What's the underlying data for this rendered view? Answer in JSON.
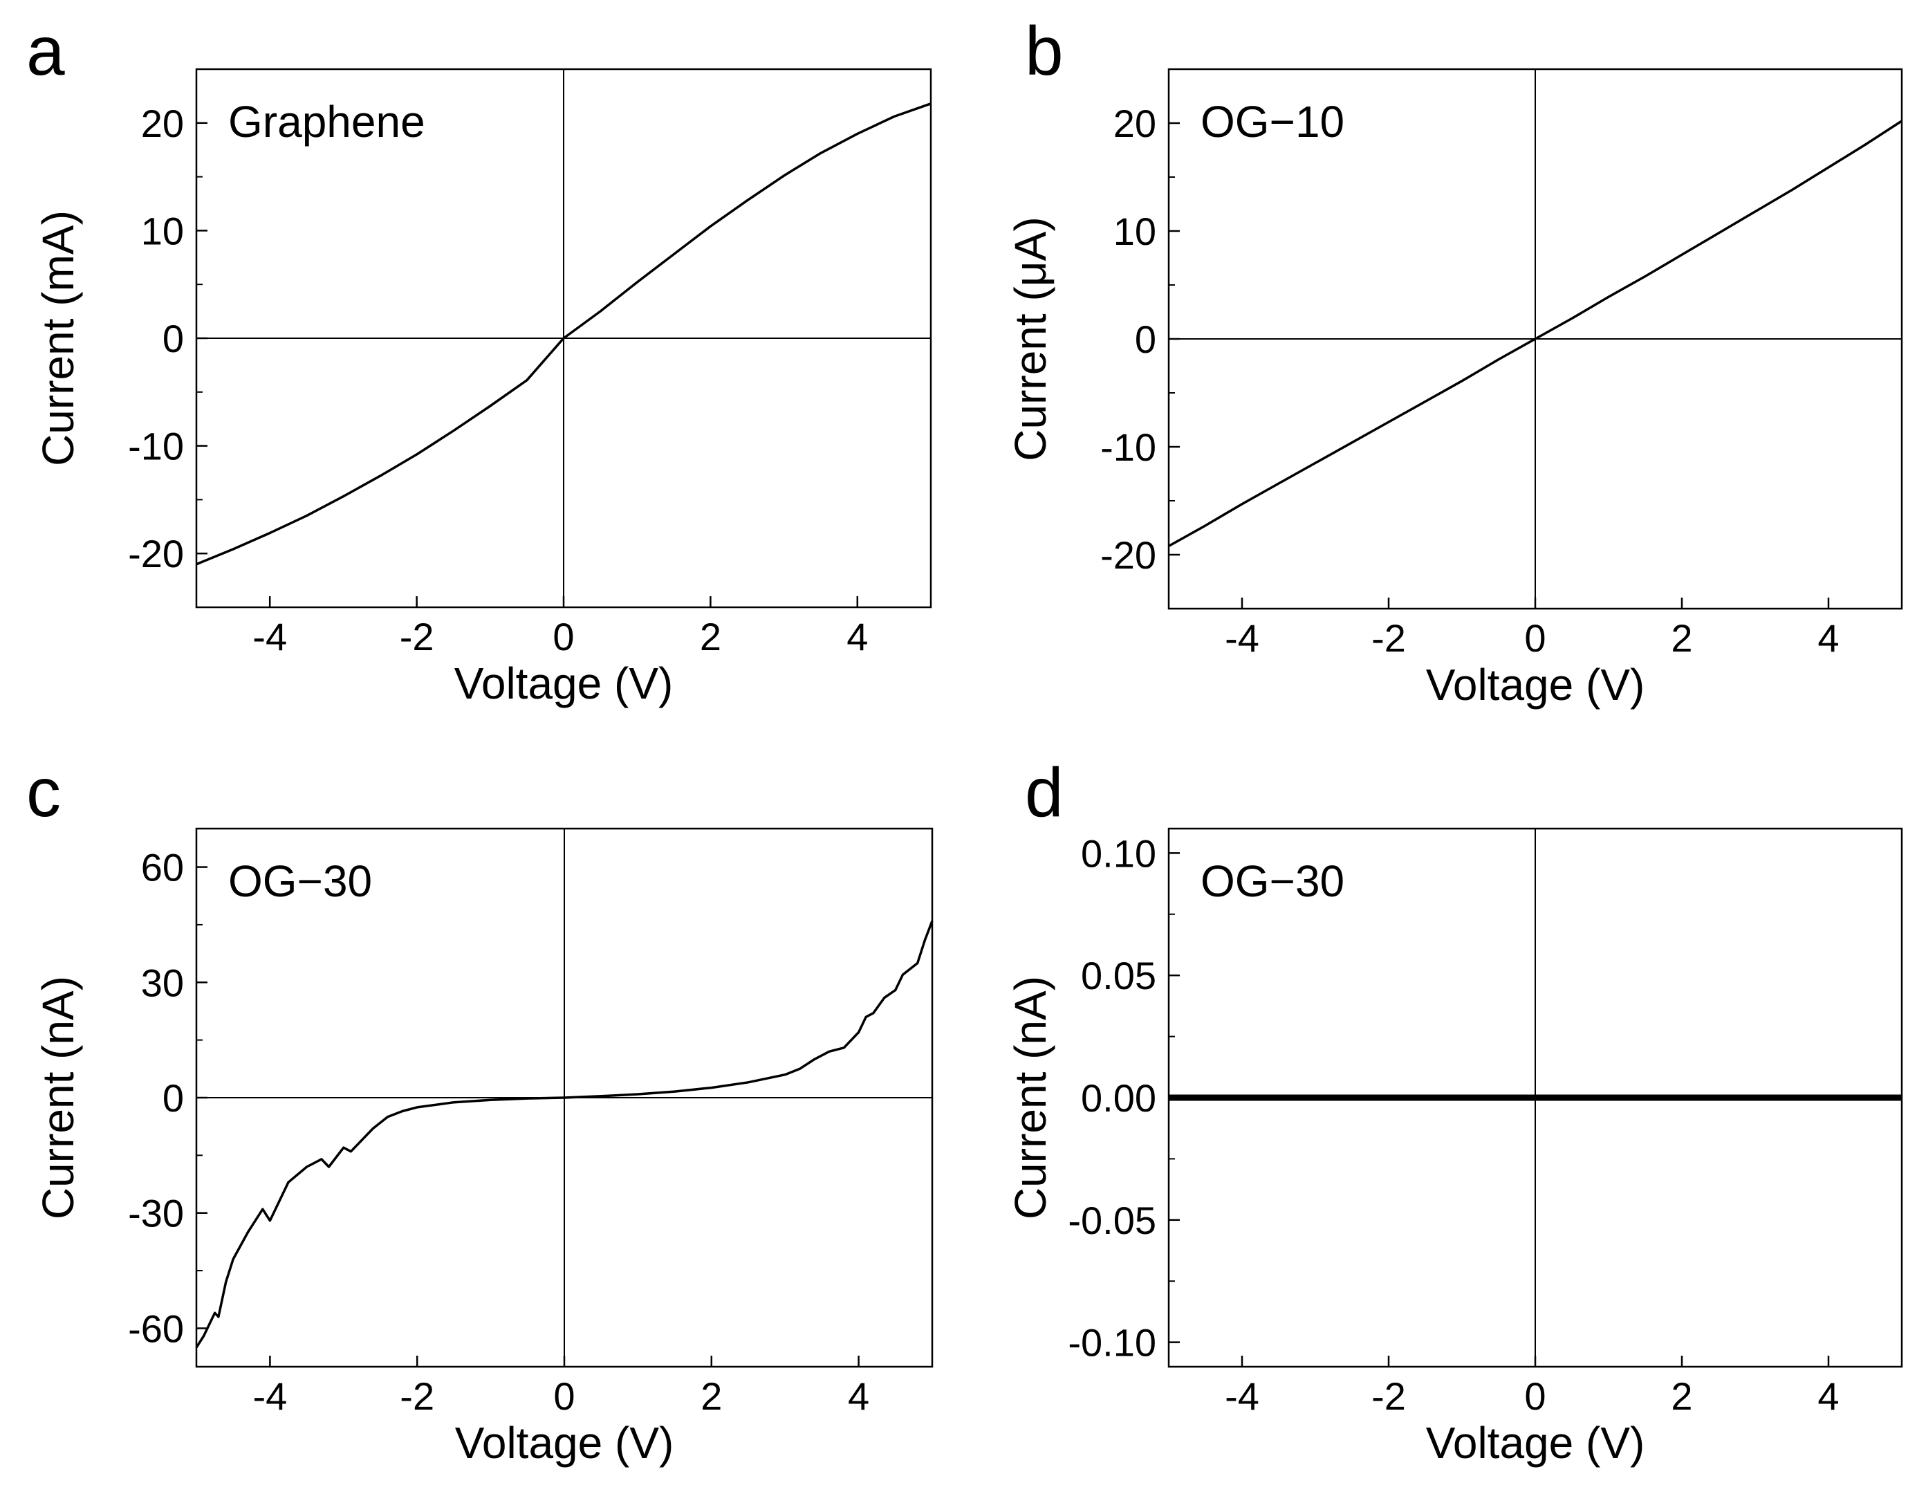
{
  "chart_data": [
    {
      "panel": "a",
      "type": "line",
      "annotation": "Graphene",
      "xlabel": "Voltage (V)",
      "ylabel": "Current (mA)",
      "xlim": [
        -5,
        5
      ],
      "ylim": [
        -25,
        25
      ],
      "xticks": [
        -4,
        -2,
        0,
        2,
        4
      ],
      "xtick_labels": [
        "-4",
        "-2",
        "0",
        "2",
        "4"
      ],
      "yticks": [
        -20,
        -10,
        0,
        10,
        20
      ],
      "ytick_labels": [
        "-20",
        "-10",
        "0",
        "10",
        "20"
      ],
      "series": [
        {
          "name": "Graphene",
          "x": [
            -5,
            -4.5,
            -4,
            -3.5,
            -3,
            -2.5,
            -2,
            -1.5,
            -1,
            -0.5,
            0,
            0.5,
            1,
            1.5,
            2,
            2.5,
            3,
            3.5,
            4,
            4.5,
            5
          ],
          "y": [
            -21,
            -19.6,
            -18.1,
            -16.5,
            -14.7,
            -12.8,
            -10.8,
            -8.6,
            -6.3,
            -3.9,
            0,
            2.5,
            5.2,
            7.8,
            10.4,
            12.8,
            15.1,
            17.2,
            19.0,
            20.6,
            21.8
          ]
        }
      ]
    },
    {
      "panel": "b",
      "type": "line",
      "annotation": "OG−10",
      "xlabel": "Voltage (V)",
      "ylabel": "Current (μA)",
      "xlim": [
        -5,
        5
      ],
      "ylim": [
        -25,
        25
      ],
      "xticks": [
        -4,
        -2,
        0,
        2,
        4
      ],
      "xtick_labels": [
        "-4",
        "-2",
        "0",
        "2",
        "4"
      ],
      "yticks": [
        -20,
        -10,
        0,
        10,
        20
      ],
      "ytick_labels": [
        "-20",
        "-10",
        "0",
        "10",
        "20"
      ],
      "series": [
        {
          "name": "OG−10",
          "x": [
            -5,
            -4.5,
            -4,
            -3.5,
            -3,
            -2.5,
            -2,
            -1.5,
            -1,
            -0.5,
            0,
            0.5,
            1,
            1.5,
            2,
            2.5,
            3,
            3.5,
            4,
            4.5,
            5
          ],
          "y": [
            -19.2,
            -17.3,
            -15.3,
            -13.4,
            -11.5,
            -9.6,
            -7.7,
            -5.8,
            -3.9,
            -1.9,
            0,
            1.9,
            3.9,
            5.8,
            7.8,
            9.8,
            11.8,
            13.8,
            15.9,
            18.0,
            20.2
          ]
        }
      ]
    },
    {
      "panel": "c",
      "type": "line",
      "annotation": "OG−30",
      "xlabel": "Voltage (V)",
      "ylabel": "Current (nA)",
      "xlim": [
        -5,
        5
      ],
      "ylim": [
        -70,
        70
      ],
      "xticks": [
        -4,
        -2,
        0,
        2,
        4
      ],
      "xtick_labels": [
        "-4",
        "-2",
        "0",
        "2",
        "4"
      ],
      "yticks": [
        -60,
        -30,
        0,
        30,
        60
      ],
      "ytick_labels": [
        "-60",
        "-30",
        "0",
        "30",
        "60"
      ],
      "series": [
        {
          "name": "OG−30",
          "x": [
            -5,
            -4.9,
            -4.75,
            -4.7,
            -4.6,
            -4.5,
            -4.3,
            -4.1,
            -4.0,
            -3.9,
            -3.75,
            -3.5,
            -3.3,
            -3.2,
            -3.0,
            -2.9,
            -2.6,
            -2.4,
            -2.2,
            -2.0,
            -1.5,
            -1.0,
            -0.5,
            0,
            0.5,
            1.0,
            1.5,
            2.0,
            2.5,
            3.0,
            3.2,
            3.4,
            3.6,
            3.8,
            4.0,
            4.1,
            4.2,
            4.35,
            4.5,
            4.6,
            4.8,
            4.9,
            5.0
          ],
          "y": [
            -65,
            -62,
            -56,
            -57,
            -48,
            -42,
            -35,
            -29,
            -32,
            -28,
            -22,
            -18,
            -16,
            -18,
            -13,
            -14,
            -8,
            -5,
            -3.5,
            -2.5,
            -1.2,
            -0.6,
            -0.2,
            0,
            0.4,
            0.9,
            1.6,
            2.6,
            4.0,
            6.0,
            7.5,
            10,
            12,
            13,
            17,
            21,
            22,
            26,
            28,
            32,
            35,
            41,
            46
          ]
        }
      ]
    },
    {
      "panel": "d",
      "type": "line",
      "annotation": "OG−30",
      "xlabel": "Voltage (V)",
      "ylabel": "Current (nA)",
      "xlim": [
        -5,
        5
      ],
      "ylim": [
        -0.11,
        0.11
      ],
      "xticks": [
        -4,
        -2,
        0,
        2,
        4
      ],
      "xtick_labels": [
        "-4",
        "-2",
        "0",
        "2",
        "4"
      ],
      "yticks": [
        -0.1,
        -0.05,
        0,
        0.05,
        0.1
      ],
      "ytick_labels": [
        "-0.10",
        "-0.05",
        "0.00",
        "0.05",
        "0.10"
      ],
      "series": [
        {
          "name": "OG−30",
          "x": [
            -5,
            -2.5,
            0,
            2.5,
            5
          ],
          "y": [
            0,
            0,
            0,
            0,
            0
          ]
        }
      ]
    }
  ]
}
